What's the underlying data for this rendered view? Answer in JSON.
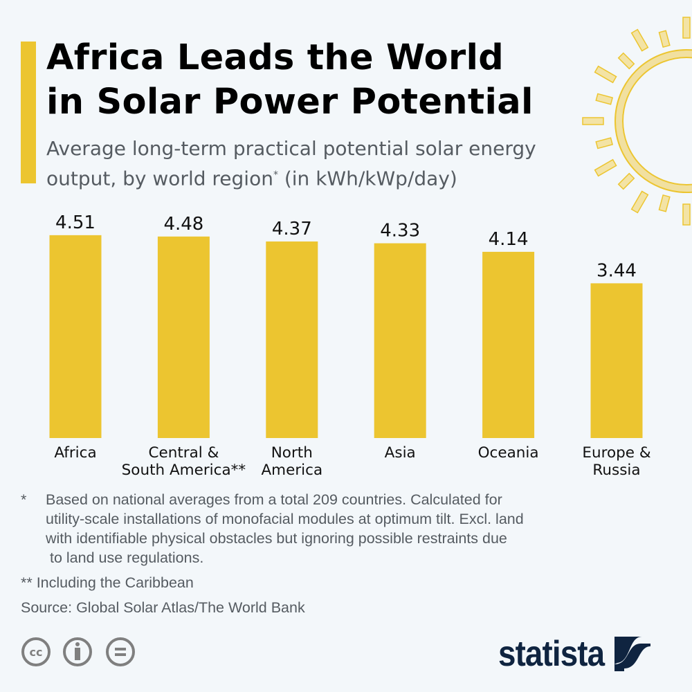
{
  "header": {
    "title_line1": "Africa Leads the World",
    "title_line2": "in Solar Power Potential",
    "subtitle_a": "Average long-term practical potential solar energy",
    "subtitle_b": "output, by world region",
    "subtitle_mark": "*",
    "subtitle_c": " (in kWh/kWp/day)"
  },
  "chart_data": {
    "type": "bar",
    "categories": [
      [
        "Africa"
      ],
      [
        "Central &",
        "South America**"
      ],
      [
        "North",
        "America"
      ],
      [
        "Asia"
      ],
      [
        "Oceania"
      ],
      [
        "Europe &",
        "Russia"
      ]
    ],
    "values": [
      4.51,
      4.48,
      4.37,
      4.33,
      4.14,
      3.44
    ],
    "data_labels": [
      "4.51",
      "4.48",
      "4.37",
      "4.33",
      "4.14",
      "3.44"
    ],
    "title": "Africa Leads the World in Solar Power Potential",
    "ylabel": "",
    "ylim": [
      0,
      4.51
    ],
    "grid": false,
    "color": "#ecc530"
  },
  "footnotes": {
    "star_mark": "*",
    "star_lines": [
      "Based on national averages from a total 209 countries. Calculated for",
      "utility-scale installations of monofacial modules at optimum tilt. Excl. land",
      "with identifiable physical obstacles but ignoring possible restraints due",
      " to land use regulations."
    ],
    "double_star": "** Including the Caribbean",
    "source": "Source: Global Solar Atlas/The World Bank"
  },
  "footer": {
    "brand": "statista",
    "license_icons": [
      "cc-icon",
      "attribution-icon",
      "no-derivatives-icon"
    ]
  },
  "colors": {
    "accent": "#ecc530",
    "brand": "#0f2440",
    "text_muted": "#555b61"
  }
}
